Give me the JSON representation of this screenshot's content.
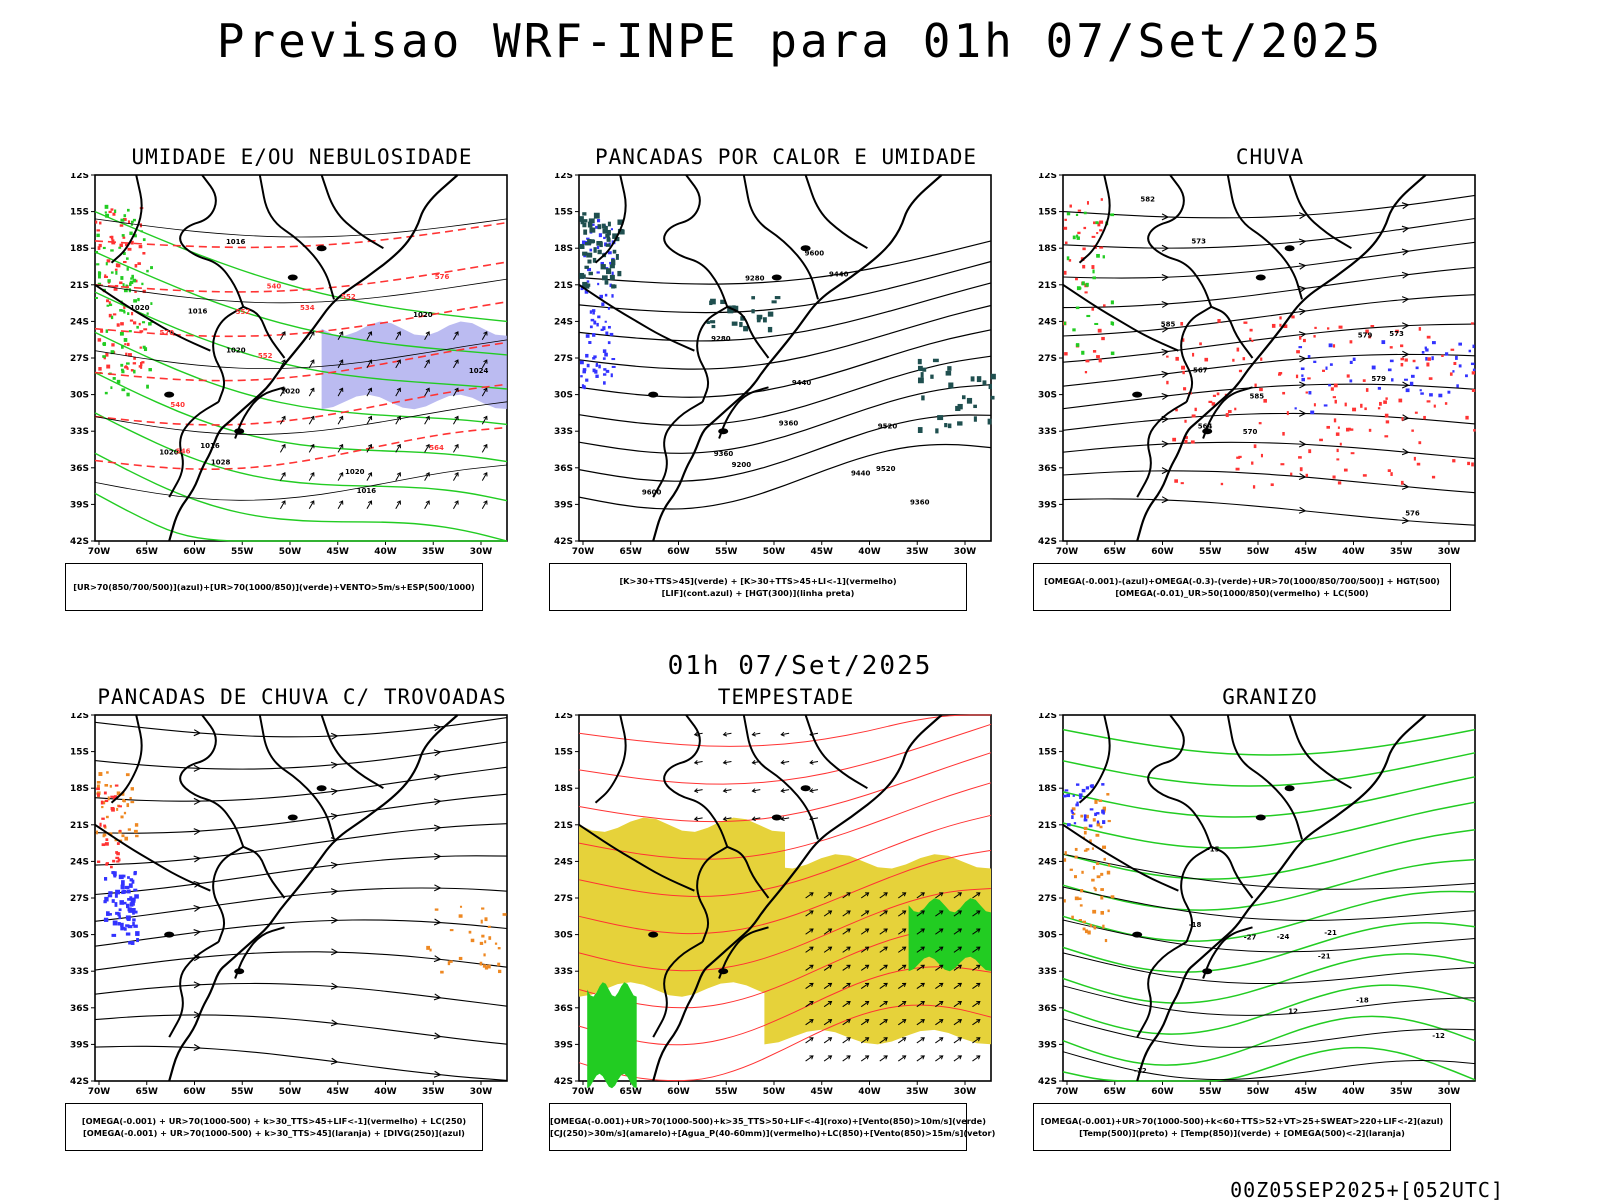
{
  "main_title": "Previsao WRF-INPE  para 01h 07/Set/2025",
  "mid_title": "01h 07/Set/2025",
  "footer": "00Z05SEP2025+[052UTC]",
  "lat_ticks": [
    "12S",
    "15S",
    "18S",
    "21S",
    "24S",
    "27S",
    "30S",
    "33S",
    "36S",
    "39S",
    "42S"
  ],
  "lon_ticks": [
    "70W",
    "65W",
    "60W",
    "55W",
    "50W",
    "45W",
    "40W",
    "35W",
    "30W"
  ],
  "panels": [
    {
      "title": "UMIDADE E/OU NEBULOSIDADE",
      "legend": [
        "[UR>70(850/700/500)](azul)+[UR>70(1000/850)](verde)+VENTO>5m/s+ESP(500/1000)"
      ],
      "contour_labels": [
        "1016",
        "1016",
        "1016",
        "1016",
        "1020",
        "1020",
        "1024",
        "1020",
        "1020",
        "1028",
        "1020",
        "1020",
        "564",
        "570",
        "576",
        "552",
        "552",
        "546",
        "540",
        "534",
        "540",
        "552"
      ]
    },
    {
      "title": "PANCADAS POR CALOR E UMIDADE",
      "legend": [
        "[K>30+TTS>45](verde) + [K>30+TTS>45+LI<-1](vermelho)",
        "[LIF](cont.azul) + [HGT(300)](linha preta)"
      ],
      "contour_labels": [
        "9600",
        "9520",
        "9440",
        "9360",
        "9280",
        "9600",
        "9520",
        "9440",
        "9440",
        "9360",
        "9360",
        "9280",
        "9200"
      ]
    },
    {
      "title": "CHUVA",
      "legend": [
        "[OMEGA(-0.001)-(azul)+OMEGA(-0.3)-(verde)+UR>70(1000/850/700/500)] + HGT(500)",
        "[OMEGA(-0.01)_UR>50(1000/850)(vermelho) + LC(500)"
      ],
      "contour_labels": [
        "585",
        "585",
        "582",
        "579",
        "576",
        "573",
        "570",
        "567",
        "564",
        "579",
        "573"
      ]
    },
    {
      "title": "PANCADAS DE CHUVA C/ TROVOADAS",
      "legend": [
        "[OMEGA(-0.001) + UR>70(1000-500) + k>30_TTS>45+LIF<-1](vermelho) + LC(250)",
        "[OMEGA(-0.001) + UR>70(1000-500) + k>30_TTS>45](laranja) + [DIVG(250)](azul)"
      ],
      "contour_labels": []
    },
    {
      "title": "TEMPESTADE",
      "legend": [
        "[OMEGA(-0.001)+UR>70(1000-500)+k>35_TTS>50+LIF<-4](roxo)+[Vento(850)>10m/s](verde)",
        "[CJ(250)>30m/s](amarelo)+[Agua_P(40-60mm)](vermelho)+LC(850)+[Vento(850)>15m/s](vetor)"
      ],
      "contour_labels": []
    },
    {
      "title": "GRANIZO",
      "legend": [
        "[OMEGA(-0.001)+UR>70(1000-500)+k<60+TTS>52+VT>25+SWEAT>220+LIF<-2](azul)",
        "[Temp(500)](preto) + [Temp(850)](verde) + [OMEGA(500)<-2](laranja)"
      ],
      "contour_labels": [
        "-12",
        "-12",
        "-15",
        "-18",
        "-18",
        "-21",
        "-21",
        "-24",
        "-27",
        "12"
      ]
    }
  ],
  "colors": {
    "map_black": "#000000",
    "blue": "#3333ff",
    "green": "#22cc22",
    "red": "#ff3333",
    "orange": "#ee8822",
    "lavender": "#aaaaee",
    "teal": "#1f4f4f",
    "yellow": "#e6d23a"
  }
}
